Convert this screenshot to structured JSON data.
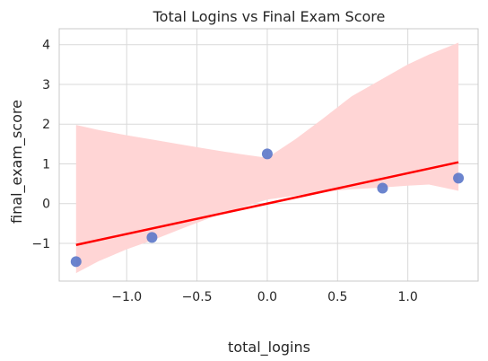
{
  "chart_data": {
    "type": "scatter",
    "title": "Total Logins vs Final Exam Score",
    "xlabel": "total_logins",
    "ylabel": "final_exam_score",
    "xlim": [
      -1.48,
      1.5
    ],
    "ylim": [
      -1.95,
      4.4
    ],
    "xticks": [
      -1.0,
      -0.5,
      0.0,
      0.5,
      1.0
    ],
    "xtick_labels": [
      "−1.0",
      "−0.5",
      "0.0",
      "0.5",
      "1.0"
    ],
    "yticks": [
      -1,
      0,
      1,
      2,
      3,
      4
    ],
    "ytick_labels": [
      "−1",
      "0",
      "1",
      "2",
      "3",
      "4"
    ],
    "grid": true,
    "points": [
      {
        "x": -1.36,
        "y": -1.46
      },
      {
        "x": -0.82,
        "y": -0.85
      },
      {
        "x": 0.0,
        "y": 1.25
      },
      {
        "x": 0.82,
        "y": 0.39
      },
      {
        "x": 1.36,
        "y": 0.64
      }
    ],
    "regression_line": {
      "x": [
        -1.36,
        1.36
      ],
      "y": [
        -1.04,
        1.04
      ]
    },
    "confidence_band": {
      "x": [
        -1.36,
        -1.2,
        -1.0,
        -0.8,
        -0.6,
        -0.4,
        -0.2,
        0.0,
        0.2,
        0.4,
        0.6,
        0.8,
        1.0,
        1.15,
        1.36
      ],
      "upper": [
        1.98,
        1.85,
        1.72,
        1.6,
        1.48,
        1.36,
        1.25,
        1.15,
        1.62,
        2.15,
        2.7,
        3.1,
        3.5,
        3.75,
        4.05
      ],
      "lower": [
        -1.75,
        -1.45,
        -1.15,
        -0.9,
        -0.62,
        -0.35,
        -0.12,
        0.1,
        0.2,
        0.3,
        0.36,
        0.4,
        0.45,
        0.48,
        0.32
      ]
    },
    "colors": {
      "point": "#5b77c9",
      "line": "#ff0000",
      "band": "#ffd5d5",
      "grid": "#d9d9d9",
      "spine": "#c8c8c8"
    }
  }
}
